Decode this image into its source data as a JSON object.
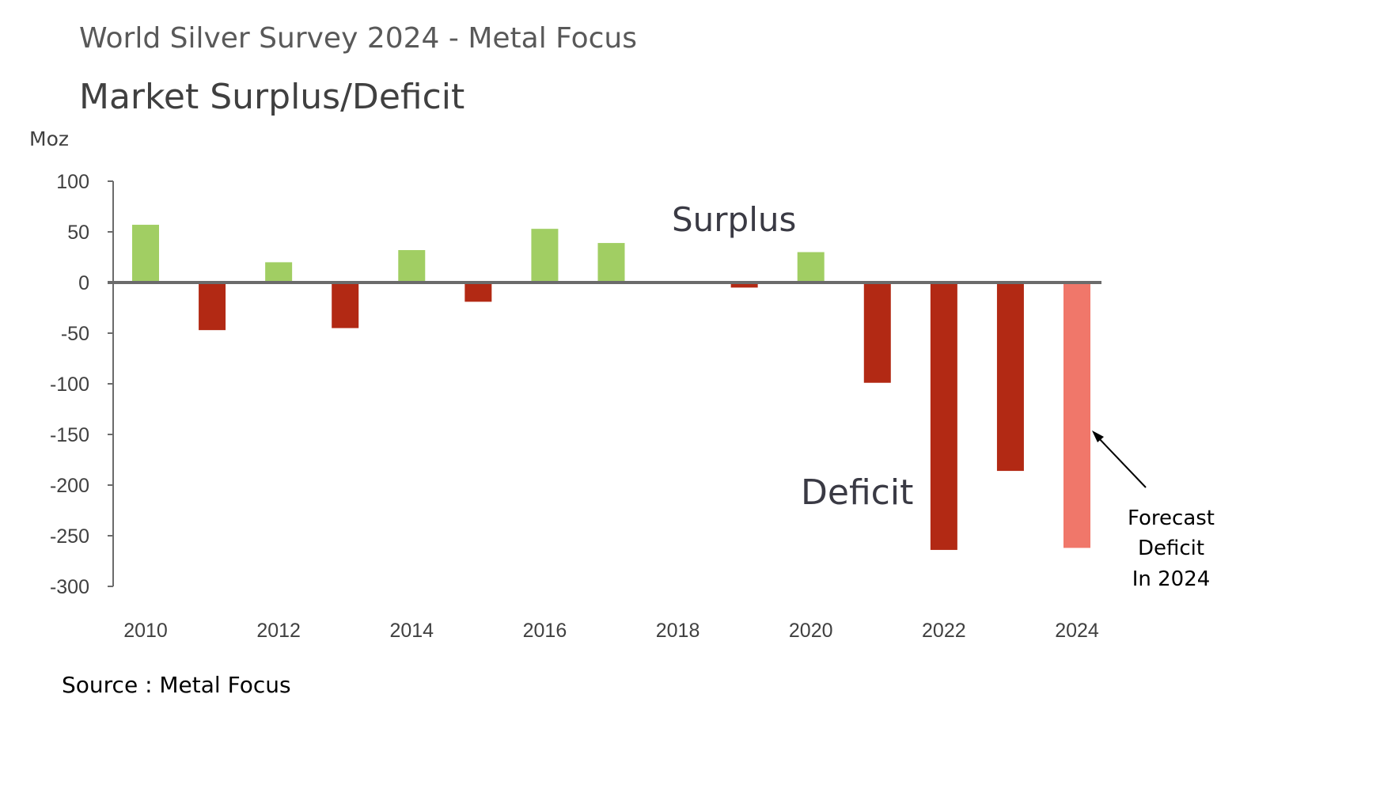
{
  "chart_data": {
    "type": "bar",
    "supertitle": "World Silver Survey 2024  -  Metal Focus",
    "title": "Market Surplus/Deficit",
    "ylabel": "Moz",
    "xlabel": "",
    "ylim": [
      -300,
      100
    ],
    "yticks": [
      100,
      50,
      0,
      -50,
      -100,
      -150,
      -200,
      -250,
      -300
    ],
    "x": [
      2010,
      2011,
      2012,
      2013,
      2014,
      2015,
      2016,
      2017,
      2018,
      2019,
      2020,
      2021,
      2022,
      2023,
      2024
    ],
    "xtick_labels": [
      "2010",
      "2012",
      "2014",
      "2016",
      "2018",
      "2020",
      "2022",
      "2024"
    ],
    "values": [
      57,
      -47,
      20,
      -45,
      32,
      -19,
      53,
      39,
      0,
      -5,
      30,
      -99,
      -264,
      -186,
      -262
    ],
    "forecast": [
      false,
      false,
      false,
      false,
      false,
      false,
      false,
      false,
      false,
      false,
      false,
      false,
      false,
      false,
      true
    ],
    "colors": {
      "surplus": "#a1ce63",
      "deficit": "#b22914",
      "forecast": "#f0776a",
      "axis": "#6b6b6b"
    },
    "annotations": {
      "surplus": "Surplus",
      "deficit": "Deficit",
      "forecast_lines": [
        "Forecast",
        "Deficit",
        "In 2024"
      ]
    },
    "source": "Source : Metal Focus"
  }
}
